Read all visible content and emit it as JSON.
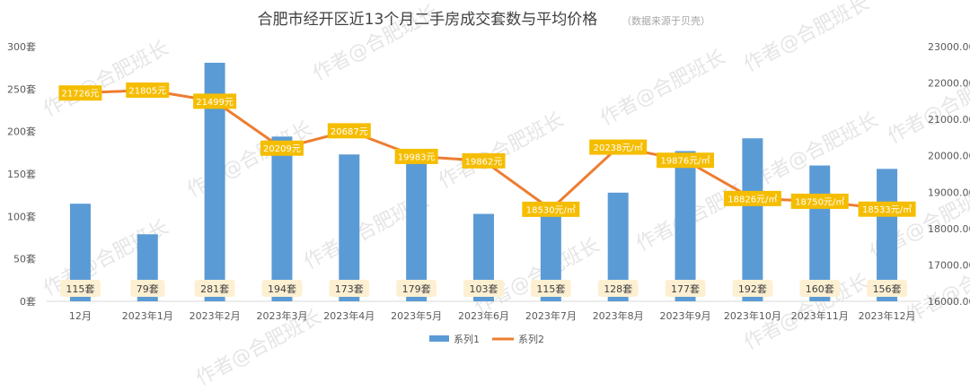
{
  "watermark": "作者@合肥班长",
  "colors": {
    "bar": "#5b9bd5",
    "line": "#ed7d31",
    "label_fill": "#f5bd00",
    "count_label_fill": "#fdf0d2",
    "axis_text": "#595959",
    "gridline": "#d9d9d9"
  },
  "chart_data": {
    "type": "bar",
    "title": "合肥市经开区近13个月二手房成交套数与平均价格",
    "subtitle": "（数据来源于贝壳）",
    "categories": [
      "12月",
      "2023年1月",
      "2023年2月",
      "2023年3月",
      "2023年4月",
      "2023年5月",
      "2023年6月",
      "2023年7月",
      "2023年8月",
      "2023年9月",
      "2023年10月",
      "2023年11月",
      "2023年12月"
    ],
    "series": [
      {
        "name": "系列1",
        "type": "bar",
        "axis": "left",
        "values": [
          115,
          79,
          281,
          194,
          173,
          179,
          103,
          115,
          128,
          177,
          192,
          160,
          156
        ],
        "labels": [
          "115套",
          "79套",
          "281套",
          "194套",
          "173套",
          "179套",
          "103套",
          "115套",
          "128套",
          "177套",
          "192套",
          "160套",
          "156套"
        ]
      },
      {
        "name": "系列2",
        "type": "line",
        "axis": "right",
        "values": [
          21726,
          21805,
          21499,
          20209,
          20687,
          19983,
          19862,
          18530,
          20238,
          19876,
          18826,
          18750,
          18533
        ],
        "labels": [
          "21726元",
          "21805元",
          "21499元",
          "20209元",
          "20687元",
          "19983元",
          "19862元",
          "18530元/㎡",
          "20238元/㎡",
          "19876元/㎡",
          "18826元/㎡",
          "18750元/㎡",
          "18533元/㎡"
        ]
      }
    ],
    "y_left": {
      "ylim": [
        0,
        300
      ],
      "ticks": [
        0,
        50,
        100,
        150,
        200,
        250,
        300
      ],
      "tick_labels": [
        "0套",
        "50套",
        "100套",
        "150套",
        "200套",
        "250套",
        "300套"
      ]
    },
    "y_right": {
      "ylim": [
        16000,
        23000
      ],
      "ticks": [
        16000,
        17000,
        18000,
        19000,
        20000,
        21000,
        22000,
        23000
      ],
      "tick_labels": [
        "16000.00元",
        "17000.00元",
        "18000.00元",
        "19000.00元",
        "20000.00元",
        "21000.00元",
        "22000.00元",
        "23000.00元"
      ]
    },
    "grid": false,
    "legend_position": "bottom"
  }
}
